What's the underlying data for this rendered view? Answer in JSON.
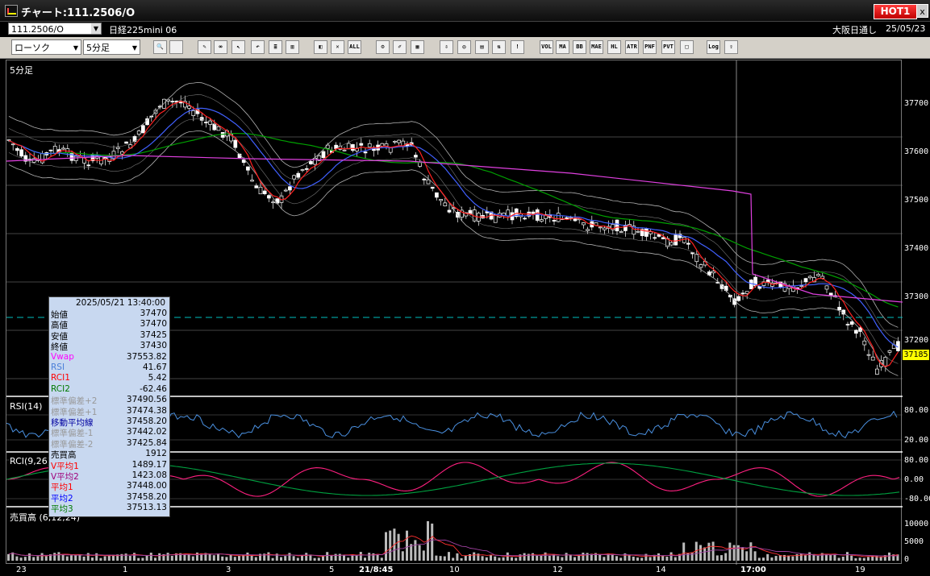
{
  "window": {
    "title": "チャート:111.2506/O",
    "hot_label": "HOT1",
    "close_label": "x"
  },
  "header": {
    "code": "111.2506/O",
    "issue_name": "日経225mini 06",
    "market": "大阪日通し",
    "date": "25/05/23"
  },
  "toolbar": {
    "chart_type": "ローソク",
    "interval": "5分足",
    "buttons": [
      {
        "name": "zoom-icon",
        "label": "🔍"
      },
      {
        "name": "frame-icon",
        "label": ""
      },
      {
        "name": "pencil-icon",
        "label": "✎"
      },
      {
        "name": "link-icon",
        "label": "∞"
      },
      {
        "name": "cursor-icon",
        "label": "↖"
      },
      {
        "name": "undo-icon",
        "label": "↶"
      },
      {
        "name": "memo-icon",
        "label": "≣"
      },
      {
        "name": "trash-icon",
        "label": "▥"
      },
      {
        "name": "draw-icon",
        "label": "◧"
      },
      {
        "name": "erase-icon",
        "label": "✕"
      },
      {
        "name": "all-icon",
        "label": "ALL"
      },
      {
        "name": "settings-icon",
        "label": "⚙"
      },
      {
        "name": "tool-icon",
        "label": "✐"
      },
      {
        "name": "color-icon",
        "label": "▦"
      },
      {
        "name": "import-icon",
        "label": "⇩"
      },
      {
        "name": "search-chart-icon",
        "label": "◎"
      },
      {
        "name": "chart-icon",
        "label": "▤"
      },
      {
        "name": "indicator-icon",
        "label": "⇅"
      },
      {
        "name": "disabled-icon",
        "label": "!"
      },
      {
        "name": "volume-icon",
        "label": "VOL"
      },
      {
        "name": "ma-icon",
        "label": "MA"
      },
      {
        "name": "bb-icon",
        "label": "BB"
      },
      {
        "name": "mae-icon",
        "label": "MAE"
      },
      {
        "name": "hl-icon",
        "label": "HL"
      },
      {
        "name": "atr-icon",
        "label": "ATR"
      },
      {
        "name": "pnf-icon",
        "label": "PNF"
      },
      {
        "name": "pvt-icon",
        "label": "PVT"
      },
      {
        "name": "frame2-icon",
        "label": "□"
      },
      {
        "name": "log-icon",
        "label": "Log"
      },
      {
        "name": "export-icon",
        "label": "⇪"
      }
    ]
  },
  "panes": {
    "price": {
      "label": "5分足",
      "ticks": [
        "37700",
        "37600",
        "37500",
        "37400",
        "37300",
        "37200"
      ],
      "last_price": "37185"
    },
    "rsi": {
      "label": "RSI(14)",
      "ticks": [
        "80.00",
        "20.00"
      ]
    },
    "rci": {
      "label": "RCI(9,26)",
      "ticks": [
        "80.00",
        "0.00",
        "-80.00"
      ]
    },
    "volume": {
      "label": "売買高 (6,12,24)",
      "ticks": [
        "10000",
        "5000",
        "0"
      ]
    }
  },
  "x_axis": [
    "23",
    "1",
    "3",
    "5",
    "21/8:45",
    "10",
    "12",
    "14",
    "17:00",
    "19"
  ],
  "infobox": {
    "datetime": "2025/05/21 13:40:00",
    "rows": [
      {
        "label": "始値",
        "value": "37470",
        "color": "#000000"
      },
      {
        "label": "高値",
        "value": "37470",
        "color": "#000000"
      },
      {
        "label": "安値",
        "value": "37425",
        "color": "#000000"
      },
      {
        "label": "終値",
        "value": "37430",
        "color": "#000000"
      },
      {
        "label": "Vwap",
        "value": "37553.82",
        "color": "#ff00ff"
      },
      {
        "label": "RSI",
        "value": "41.67",
        "color": "#4a7fd8"
      },
      {
        "label": "RCI1",
        "value": "5.42",
        "color": "#ff0000"
      },
      {
        "label": "RCI2",
        "value": "-62.46",
        "color": "#007a00"
      },
      {
        "label": "標準偏差+2",
        "value": "37490.56",
        "color": "#999999"
      },
      {
        "label": "標準偏差+1",
        "value": "37474.38",
        "color": "#999999"
      },
      {
        "label": "移動平均線",
        "value": "37458.20",
        "color": "#0000a0"
      },
      {
        "label": "標準偏差-1",
        "value": "37442.02",
        "color": "#999999"
      },
      {
        "label": "標準偏差-2",
        "value": "37425.84",
        "color": "#999999"
      },
      {
        "label": "売買高",
        "value": "1912",
        "color": "#000000"
      },
      {
        "label": "V平均1",
        "value": "1489.17",
        "color": "#ff0000"
      },
      {
        "label": "V平均2",
        "value": "1423.08",
        "color": "#a0007a"
      },
      {
        "label": "平均1",
        "value": "37448.00",
        "color": "#ff0000"
      },
      {
        "label": "平均2",
        "value": "37458.20",
        "color": "#0000ff"
      },
      {
        "label": "平均3",
        "value": "37513.13",
        "color": "#007a00"
      }
    ]
  },
  "colors": {
    "price_up": "#ffffff",
    "price_down": "#000000",
    "ma_red": "#ff2020",
    "ma_blue": "#4060ff",
    "ma_green": "#00a000",
    "vwap": "#e040e0",
    "band": "#b0b0b0",
    "rsi": "#4a90e0",
    "rci1": "#ff2080",
    "rci2": "#00a040",
    "crosshair": "#00c0c0"
  }
}
